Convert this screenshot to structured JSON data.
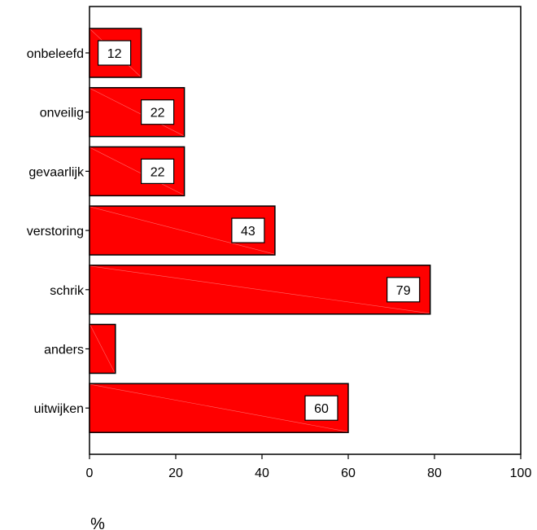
{
  "chart_data": {
    "type": "bar",
    "orientation": "horizontal",
    "categories": [
      "onbeleefd",
      "onveilig",
      "gevaarlijk",
      "verstoring",
      "schrik",
      "anders",
      "uitwijken"
    ],
    "values": [
      12,
      22,
      22,
      43,
      79,
      6,
      60
    ],
    "data_labels": [
      "12",
      "22",
      "22",
      "43",
      "79",
      "",
      "60"
    ],
    "xlim": [
      0,
      100
    ],
    "xticks": [
      0,
      20,
      40,
      60,
      80,
      100
    ],
    "xlabel": "%",
    "grid": false,
    "bar_color": "#ff0000",
    "bar_edge_color": "#000000",
    "label_box_color": "#ffffff"
  }
}
